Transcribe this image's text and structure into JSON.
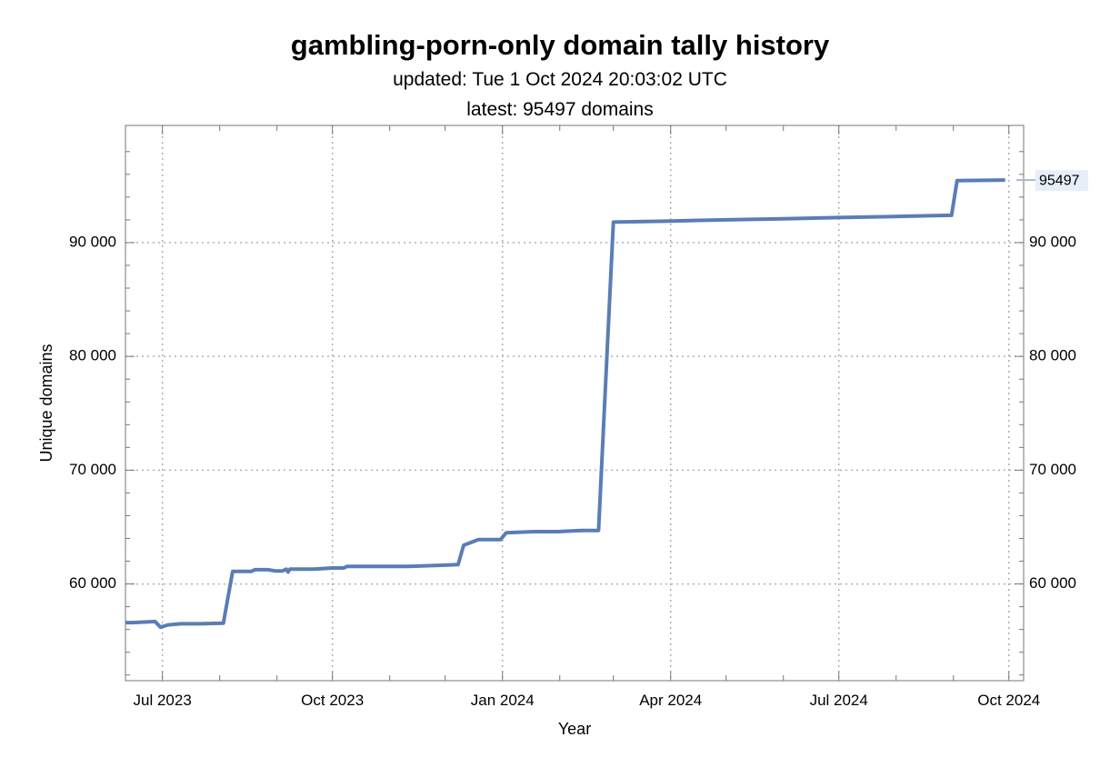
{
  "chart_data": {
    "type": "line",
    "title": "gambling-porn-only domain tally history",
    "subtitle_lines": [
      "updated: Tue 1 Oct 2024 20:03:02 UTC",
      "latest: 95497 domains"
    ],
    "xlabel": "Year",
    "ylabel": "Unique domains",
    "x_tick_labels": [
      {
        "label": "Jul 2023",
        "date": "2023-07-01"
      },
      {
        "label": "Oct 2023",
        "date": "2023-10-01"
      },
      {
        "label": "Jan 2024",
        "date": "2024-01-01"
      },
      {
        "label": "Apr 2024",
        "date": "2024-04-01"
      },
      {
        "label": "Jul 2024",
        "date": "2024-07-01"
      },
      {
        "label": "Oct 2024",
        "date": "2024-10-01"
      }
    ],
    "y_ticks": [
      60000,
      70000,
      80000,
      90000
    ],
    "y_tick_labels": [
      "60 000",
      "70 000",
      "80 000",
      "90 000"
    ],
    "xlim": [
      "2023-06-11",
      "2024-10-09"
    ],
    "ylim": [
      51500,
      100300
    ],
    "grid": true,
    "line_color": "#5b7db5",
    "latest_label": "95497",
    "series": [
      {
        "points": [
          [
            "2023-06-11",
            56600
          ],
          [
            "2023-06-15",
            56600
          ],
          [
            "2023-06-27",
            56700
          ],
          [
            "2023-06-30",
            56200
          ],
          [
            "2023-07-04",
            56400
          ],
          [
            "2023-07-11",
            56500
          ],
          [
            "2023-07-21",
            56500
          ],
          [
            "2023-08-03",
            56550
          ],
          [
            "2023-08-08",
            61100
          ],
          [
            "2023-08-18",
            61100
          ],
          [
            "2023-08-20",
            61250
          ],
          [
            "2023-08-27",
            61250
          ],
          [
            "2023-08-31",
            61150
          ],
          [
            "2023-09-04",
            61150
          ],
          [
            "2023-09-06",
            61300
          ],
          [
            "2023-09-07",
            61050
          ],
          [
            "2023-09-08",
            61300
          ],
          [
            "2023-09-21",
            61300
          ],
          [
            "2023-10-01",
            61400
          ],
          [
            "2023-10-07",
            61400
          ],
          [
            "2023-10-09",
            61550
          ],
          [
            "2023-11-11",
            61550
          ],
          [
            "2023-12-01",
            61650
          ],
          [
            "2023-12-08",
            61700
          ],
          [
            "2023-12-11",
            63400
          ],
          [
            "2023-12-19",
            63900
          ],
          [
            "2023-12-31",
            63900
          ],
          [
            "2024-01-03",
            64500
          ],
          [
            "2024-01-18",
            64600
          ],
          [
            "2024-01-31",
            64600
          ],
          [
            "2024-02-13",
            64700
          ],
          [
            "2024-02-22",
            64700
          ],
          [
            "2024-03-01",
            91800
          ],
          [
            "2024-04-01",
            91900
          ],
          [
            "2024-05-01",
            92000
          ],
          [
            "2024-06-01",
            92100
          ],
          [
            "2024-07-01",
            92200
          ],
          [
            "2024-07-31",
            92300
          ],
          [
            "2024-08-31",
            92400
          ],
          [
            "2024-09-03",
            95450
          ],
          [
            "2024-09-29",
            95497
          ]
        ]
      }
    ]
  }
}
